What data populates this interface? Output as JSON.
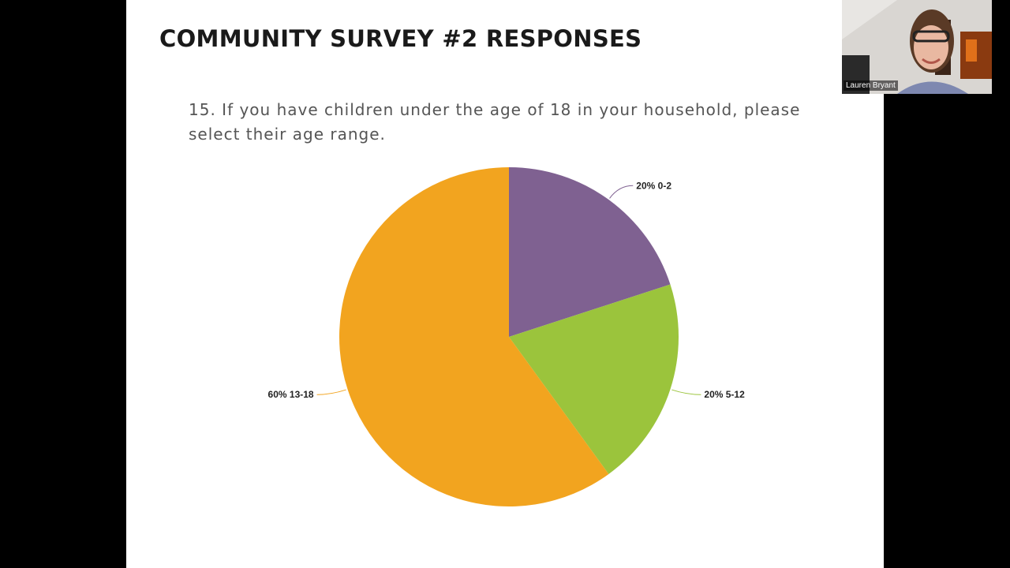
{
  "slide": {
    "title": "COMMUNITY SURVEY #2 RESPONSES",
    "question": "15. If you have children under the age of 18 in your household, please select their age range."
  },
  "chart_data": {
    "type": "pie",
    "start_angle_deg": 0,
    "direction": "clockwise",
    "slices": [
      {
        "label": "0-2",
        "value": 20,
        "display": "20% 0-2",
        "color": "#7f6191"
      },
      {
        "label": "5-12",
        "value": 20,
        "display": "20% 5-12",
        "color": "#9bc43c"
      },
      {
        "label": "13-18",
        "value": 60,
        "display": "60% 13-18",
        "color": "#f2a41f"
      }
    ]
  },
  "participant": {
    "name": "Lauren Bryant"
  },
  "colors": {
    "background": "#000000",
    "slide": "#ffffff",
    "title": "#1a1a1a",
    "question": "#555555"
  }
}
